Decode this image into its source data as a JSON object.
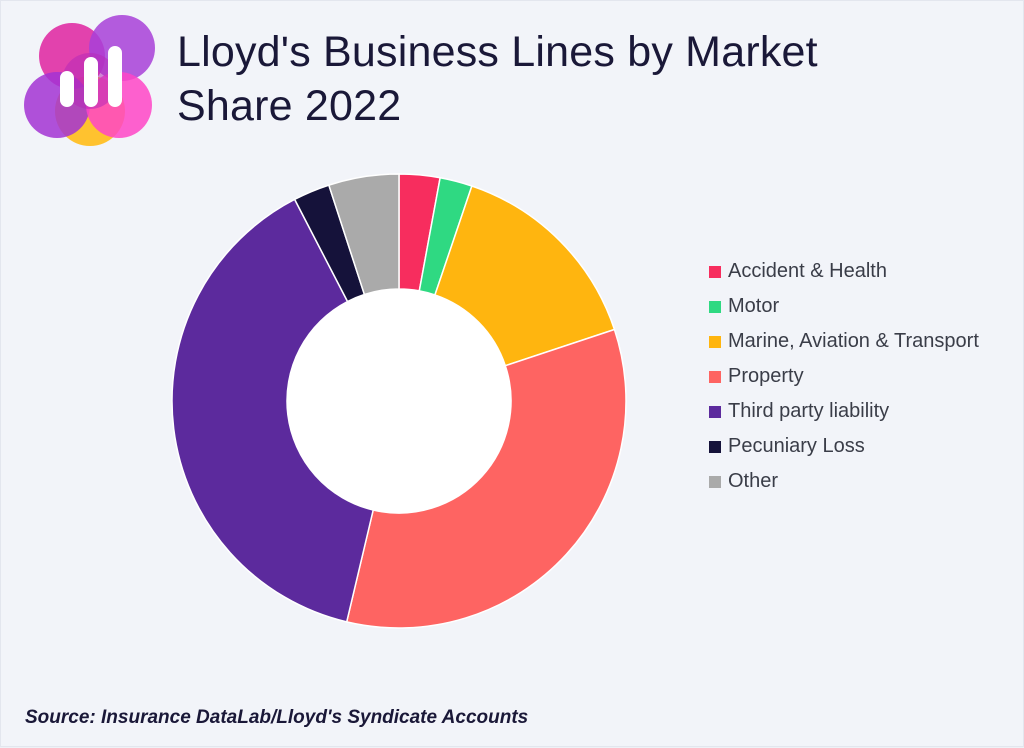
{
  "chart_data": {
    "type": "pie",
    "variant": "donut",
    "title": "Lloyd's Business Lines by Market Share 2022",
    "categories": [
      "Accident & Health",
      "Motor",
      "Marine, Aviation & Transport",
      "Property",
      "Third party liability",
      "Pecuniary Loss",
      "Other"
    ],
    "values": [
      2.9,
      2.3,
      14.7,
      33.8,
      38.7,
      2.6,
      5.0
    ],
    "unit": "%",
    "colors": [
      "#f72d5e",
      "#2fd982",
      "#ffb50f",
      "#fe6462",
      "#5c2a9d",
      "#15123a",
      "#aaaaaa"
    ],
    "legend_position": "right"
  },
  "header": {
    "title_line1": "Lloyd's Business Lines by Market",
    "title_line2": "Share 2022",
    "logo_icon": "bar-chart-logo-icon"
  },
  "footer": {
    "source": "Source: Insurance DataLab/Lloyd's Syndicate Accounts"
  }
}
